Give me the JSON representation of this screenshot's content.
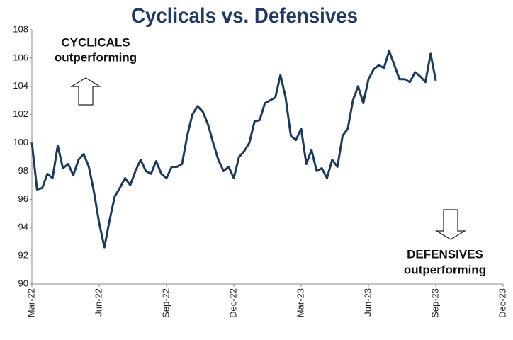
{
  "chart_data": {
    "type": "line",
    "title": "Cyclicals vs. Defensives",
    "categories": [
      "Mar-22",
      null,
      null,
      null,
      null,
      null,
      null,
      null,
      null,
      null,
      null,
      null,
      null,
      "Jun-22",
      null,
      null,
      null,
      null,
      null,
      null,
      null,
      null,
      null,
      null,
      null,
      null,
      "Sep-22",
      null,
      null,
      null,
      null,
      null,
      null,
      null,
      null,
      null,
      null,
      null,
      null,
      "Dec-22",
      null,
      null,
      null,
      null,
      null,
      null,
      null,
      null,
      null,
      null,
      null,
      null,
      "Mar-23",
      null,
      null,
      null,
      null,
      null,
      null,
      null,
      null,
      null,
      null,
      null,
      null,
      "Jun-23",
      null,
      null,
      null,
      null,
      null,
      null,
      null,
      null,
      null,
      null,
      null,
      null,
      "Sep-23",
      null,
      null,
      null,
      null,
      null,
      null,
      null,
      null,
      null,
      null,
      null,
      null,
      "Dec-23"
    ],
    "series": [
      {
        "name": "Cyclicals vs. Defensives",
        "color": "#1b3a5e",
        "values": [
          100,
          96.7,
          96.8,
          97.8,
          97.5,
          99.8,
          98.2,
          98.5,
          97.7,
          98.8,
          99.2,
          98.3,
          96.5,
          94.3,
          92.6,
          94.5,
          96.2,
          96.8,
          97.5,
          97.0,
          98.0,
          98.8,
          98.0,
          97.8,
          98.7,
          97.8,
          97.5,
          98.3,
          98.3,
          98.5,
          100.5,
          102.0,
          102.6,
          102.2,
          101.3,
          100.0,
          98.8,
          98.0,
          98.3,
          97.5,
          99.0,
          99.4,
          100.0,
          101.5,
          101.6,
          102.8,
          103.0,
          103.2,
          104.8,
          103.2,
          100.5,
          100.2,
          101.0,
          98.5,
          99.5,
          98.0,
          98.2,
          97.5,
          98.8,
          98.3,
          100.5,
          101.0,
          103.0,
          104.0,
          102.8,
          104.5,
          105.2,
          105.5,
          105.3,
          106.5,
          105.5,
          104.5,
          104.5,
          104.3,
          105.0,
          104.7,
          104.3,
          106.3,
          104.4,
          null,
          null,
          null,
          null,
          null,
          null,
          null,
          null,
          null,
          null,
          null,
          null,
          null
        ]
      }
    ],
    "ylim": [
      90,
      108
    ],
    "yticks": [
      90,
      92,
      94,
      96,
      98,
      100,
      102,
      104,
      106,
      108
    ],
    "annotations": [
      {
        "lines": [
          "CYCLICALS",
          "outperforming"
        ]
      },
      {
        "lines": [
          "DEFENSIVES",
          "outperforming"
        ]
      }
    ]
  }
}
